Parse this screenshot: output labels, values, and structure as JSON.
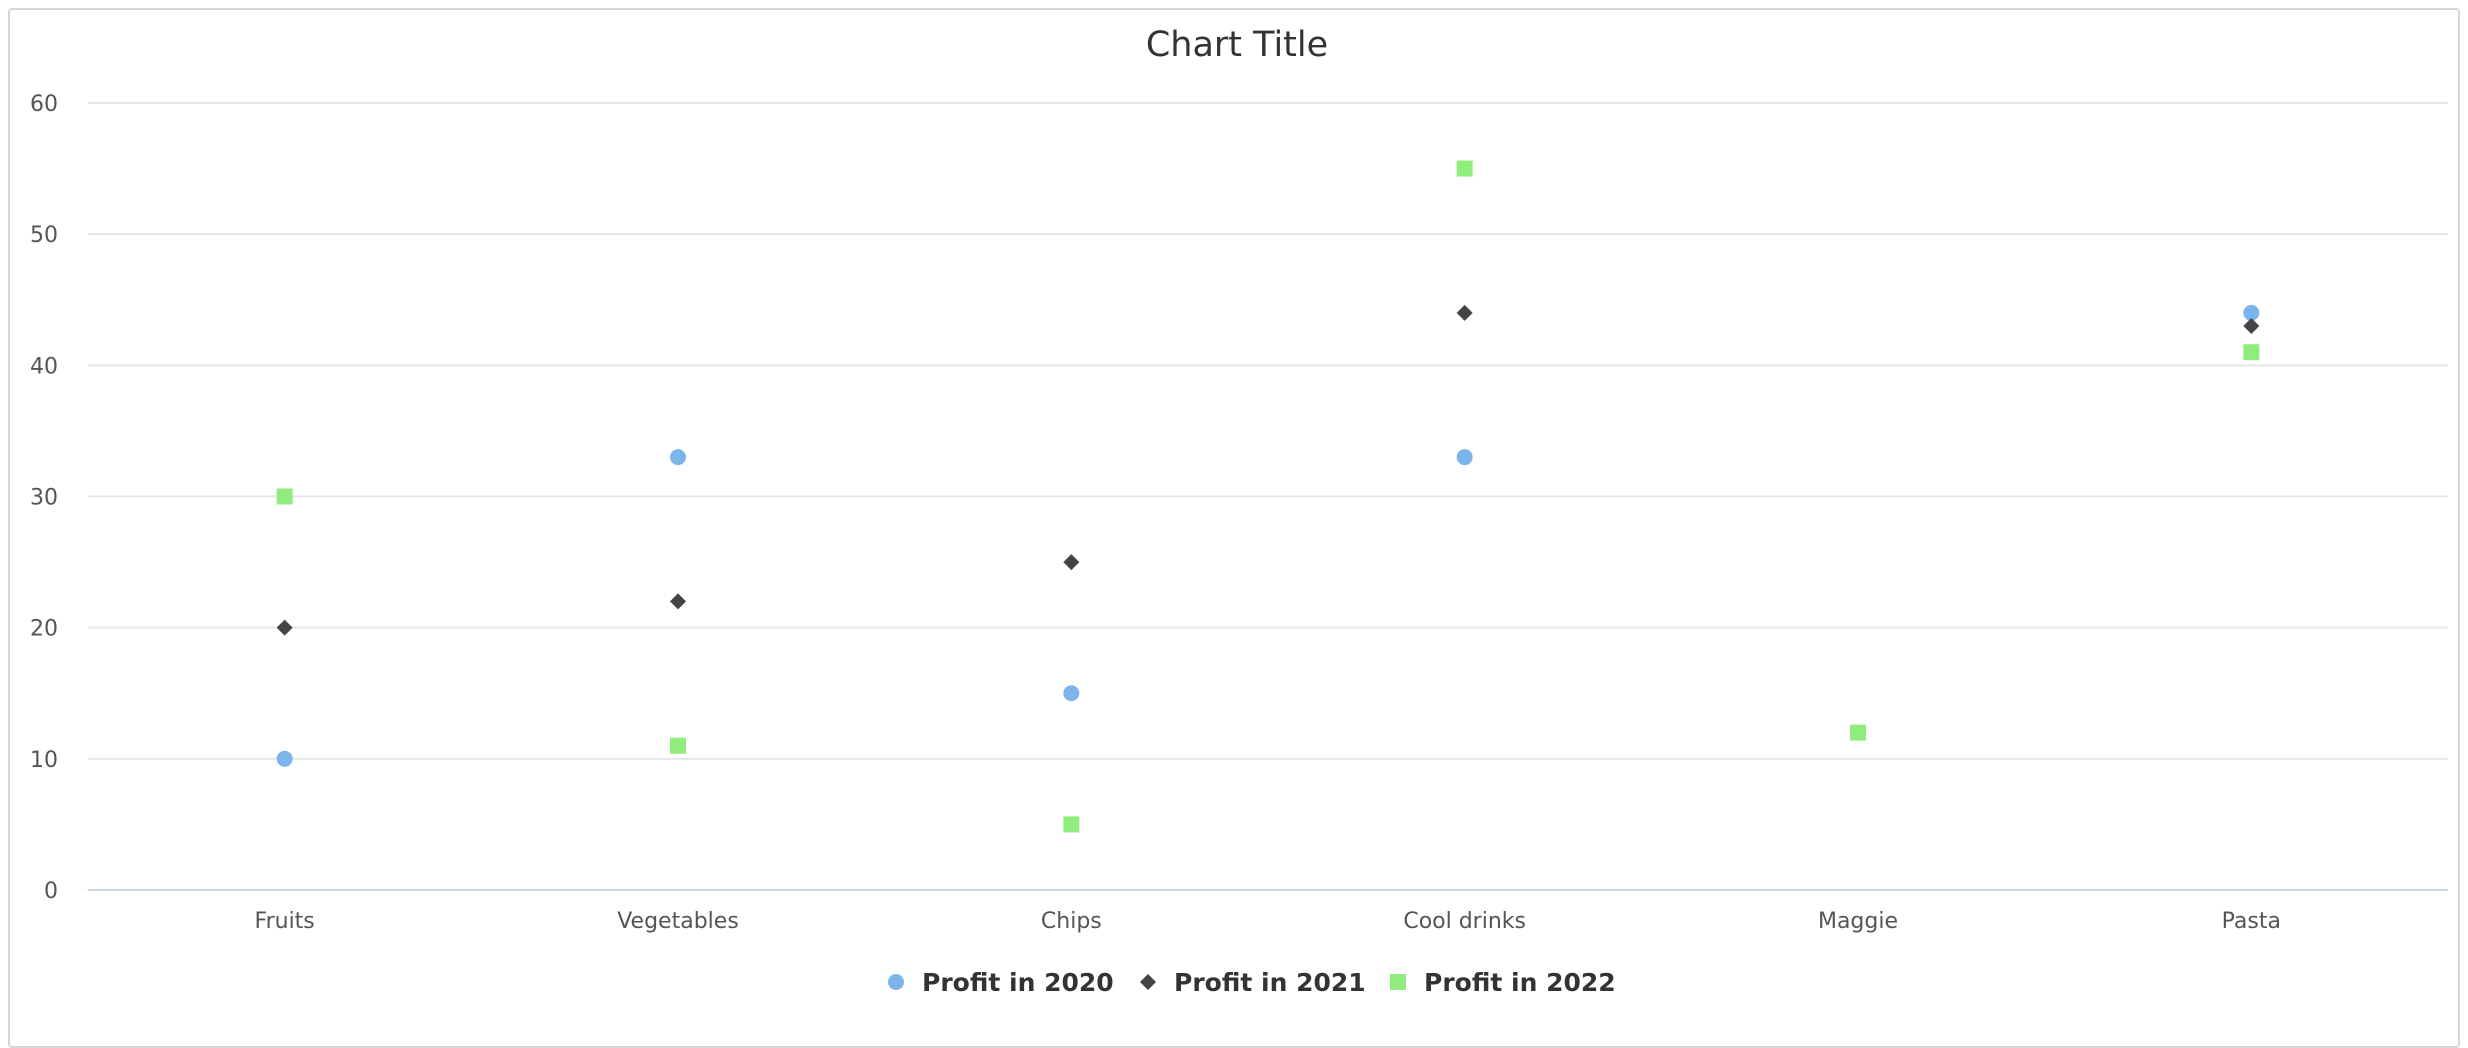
{
  "chart_data": {
    "type": "scatter",
    "title": "Chart Title",
    "xlabel": "",
    "ylabel": "",
    "categories": [
      "Fruits",
      "Vegetables",
      "Chips",
      "Cool drinks",
      "Maggie",
      "Pasta"
    ],
    "ylim": [
      0,
      60
    ],
    "yticks": [
      "0",
      "10",
      "20",
      "30",
      "40",
      "50",
      "60"
    ],
    "grid": true,
    "legend_position": "bottom-center",
    "series": [
      {
        "name": "Profit in 2020",
        "marker": "circle",
        "color": "#7cb5ec",
        "values": [
          10,
          33,
          15,
          33,
          null,
          44
        ]
      },
      {
        "name": "Profit in 2021",
        "marker": "diamond",
        "color": "#434348",
        "values": [
          20,
          22,
          25,
          44,
          null,
          43
        ]
      },
      {
        "name": "Profit in 2022",
        "marker": "square",
        "color": "#90ed7d",
        "values": [
          30,
          11,
          5,
          55,
          12,
          41
        ]
      }
    ]
  }
}
